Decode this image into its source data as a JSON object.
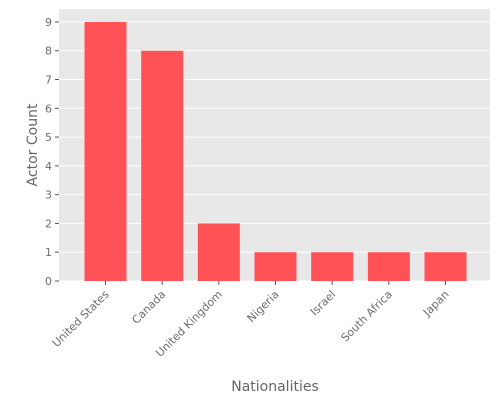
{
  "chart_data": {
    "type": "bar",
    "categories": [
      "United States",
      "Canada",
      "United Kingdom",
      "Nigeria",
      "Israel",
      "South Africa",
      "Japan"
    ],
    "values": [
      9,
      8,
      2,
      1,
      1,
      1,
      1
    ],
    "title": "",
    "xlabel": "Nationalities",
    "ylabel": "Actor Count",
    "ylim": [
      0,
      9.45
    ],
    "yticks": [
      0,
      1,
      2,
      3,
      4,
      5,
      6,
      7,
      8,
      9
    ],
    "grid": true,
    "colors": {
      "bar": "#ff5257",
      "plot_background": "#e8e8e8",
      "grid": "#ffffff",
      "text": "#6b6b6b"
    }
  }
}
